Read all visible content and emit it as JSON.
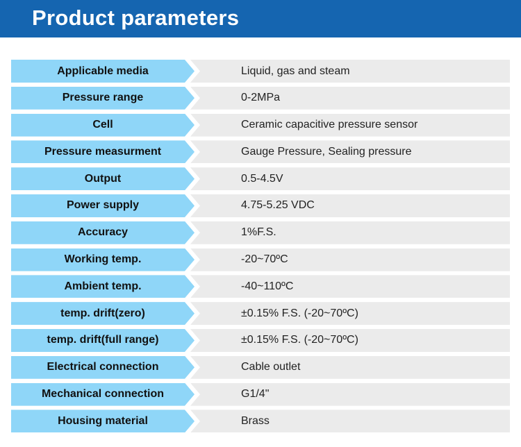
{
  "header": {
    "title": "Product parameters"
  },
  "colors": {
    "header_bg": "#1565b0",
    "label_bg": "#8fd6f8",
    "value_bg": "#ebebeb"
  },
  "rows": [
    {
      "label": "Applicable media",
      "value": "Liquid, gas and steam"
    },
    {
      "label": "Pressure range",
      "value": "0-2MPa"
    },
    {
      "label": "Cell",
      "value": "Ceramic capacitive pressure sensor"
    },
    {
      "label": "Pressure measurment",
      "value": "Gauge Pressure, Sealing pressure"
    },
    {
      "label": "Output",
      "value": "0.5-4.5V"
    },
    {
      "label": "Power supply",
      "value": "4.75-5.25 VDC"
    },
    {
      "label": "Accuracy",
      "value": "1%F.S."
    },
    {
      "label": "Working temp.",
      "value": "-20~70ºC"
    },
    {
      "label": "Ambient temp.",
      "value": "-40~110ºC"
    },
    {
      "label": "temp. drift(zero)",
      "value": "±0.15% F.S. (-20~70ºC)"
    },
    {
      "label": "temp. drift(full range)",
      "value": "±0.15% F.S. (-20~70ºC)"
    },
    {
      "label": "Electrical connection",
      "value": "Cable outlet"
    },
    {
      "label": "Mechanical connection",
      "value": "G1/4\""
    },
    {
      "label": "Housing material",
      "value": "Brass"
    }
  ]
}
